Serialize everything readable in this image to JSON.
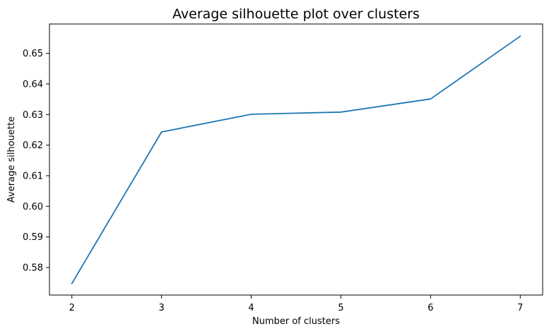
{
  "chart_data": {
    "type": "line",
    "title": "Average silhouette plot over clusters",
    "xlabel": "Number of clusters",
    "ylabel": "Average silhouette",
    "x": [
      2,
      3,
      4,
      5,
      6,
      7
    ],
    "series": [
      {
        "values": [
          0.5748,
          0.6243,
          0.6301,
          0.6308,
          0.6351,
          0.6556
        ],
        "color": "#1f77b4"
      }
    ],
    "xticks": [
      2,
      3,
      4,
      5,
      6,
      7
    ],
    "yticks": [
      0.58,
      0.59,
      0.6,
      0.61,
      0.62,
      0.63,
      0.64,
      0.65
    ],
    "ytick_labels": [
      "0.58",
      "0.59",
      "0.60",
      "0.61",
      "0.62",
      "0.63",
      "0.64",
      "0.65"
    ],
    "xlim": [
      1.75,
      7.25
    ],
    "ylim": [
      0.571,
      0.6596
    ],
    "grid": false,
    "legend": "none"
  }
}
